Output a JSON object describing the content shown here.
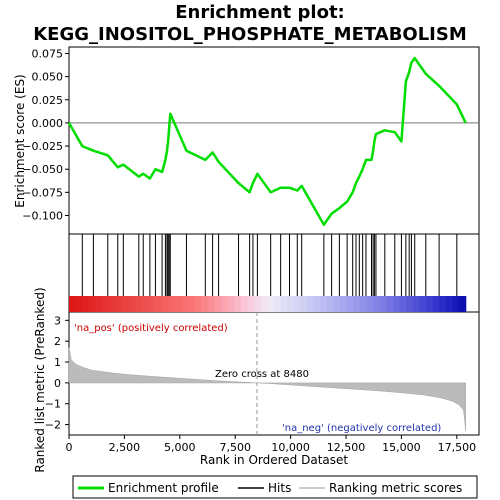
{
  "chart_data": {
    "type": "line",
    "title_line1": "Enrichment plot:",
    "title_line2": "KEGG_INOSITOL_PHOSPHATE_METABOLISM",
    "es_panel": {
      "ylabel": "Enrichment score (ES)",
      "ylim": [
        -0.12,
        0.082
      ],
      "yticks": [
        0.075,
        0.05,
        0.025,
        0.0,
        -0.025,
        -0.05,
        -0.075,
        -0.1
      ],
      "ytick_labels": [
        "0.075",
        "0.050",
        "0.025",
        "0.000",
        "−0.025",
        "−0.050",
        "−0.075",
        "−0.100"
      ],
      "series_name": "Enrichment profile",
      "color": "#00dd00",
      "x": [
        0,
        600,
        1100,
        1750,
        2200,
        2450,
        3150,
        3350,
        3650,
        3900,
        4200,
        4350,
        4420,
        4470,
        4520,
        4570,
        5300,
        6150,
        6480,
        6750,
        7650,
        8150,
        8300,
        8500,
        9100,
        9550,
        9950,
        10300,
        10500,
        11500,
        11850,
        12200,
        12550,
        12800,
        12950,
        13100,
        13250,
        13400,
        13650,
        13720,
        13780,
        13850,
        14250,
        14700,
        15000,
        15200,
        15350,
        15450,
        15600,
        16100,
        16700,
        17500,
        17900
      ],
      "y": [
        0.0,
        -0.025,
        -0.03,
        -0.035,
        -0.048,
        -0.045,
        -0.058,
        -0.055,
        -0.06,
        -0.05,
        -0.053,
        -0.04,
        -0.03,
        -0.02,
        -0.005,
        0.01,
        -0.03,
        -0.04,
        -0.032,
        -0.042,
        -0.065,
        -0.075,
        -0.065,
        -0.055,
        -0.075,
        -0.07,
        -0.07,
        -0.073,
        -0.068,
        -0.11,
        -0.098,
        -0.092,
        -0.085,
        -0.075,
        -0.065,
        -0.058,
        -0.05,
        -0.04,
        -0.04,
        -0.03,
        -0.02,
        -0.012,
        -0.008,
        -0.01,
        -0.02,
        0.045,
        0.055,
        0.065,
        0.07,
        0.053,
        0.04,
        0.02,
        0.0
      ]
    },
    "hits_x": [
      600,
      1100,
      1750,
      2200,
      2450,
      3150,
      3350,
      3650,
      3900,
      4200,
      4350,
      4420,
      4470,
      4520,
      4570,
      5300,
      6150,
      6480,
      6750,
      7650,
      8150,
      8300,
      8500,
      9100,
      9550,
      9950,
      10300,
      10500,
      11500,
      11850,
      12200,
      12550,
      12800,
      12950,
      13100,
      13250,
      13400,
      13650,
      13720,
      13780,
      13850,
      14250,
      14700,
      15000,
      15200,
      15350,
      15450,
      15600,
      16100,
      16700,
      17500
    ],
    "metric_panel": {
      "ylabel": "Ranked list metric (PreRanked)",
      "ylim": [
        -2.5,
        3.4
      ],
      "yticks": [
        3,
        2,
        1,
        0,
        -1,
        -2
      ],
      "ytick_labels": [
        "3",
        "2",
        "1",
        "0",
        "−1",
        "−2"
      ],
      "series_name": "Ranking metric scores",
      "x": [
        0,
        100,
        300,
        600,
        1000,
        2000,
        3000,
        4000,
        5000,
        6000,
        7000,
        8000,
        8480,
        9000,
        10000,
        11000,
        12000,
        13000,
        14000,
        15000,
        16000,
        16800,
        17300,
        17600,
        17800,
        17900
      ],
      "values": [
        1.7,
        1.1,
        0.9,
        0.75,
        0.62,
        0.47,
        0.37,
        0.29,
        0.22,
        0.15,
        0.08,
        0.03,
        0.0,
        -0.03,
        -0.1,
        -0.17,
        -0.24,
        -0.31,
        -0.39,
        -0.47,
        -0.58,
        -0.72,
        -0.88,
        -1.05,
        -1.3,
        -2.3
      ],
      "zero_cross_label": "Zero cross at 8480",
      "zero_cross_x": 8480,
      "pos_label": "'na_pos' (positively correlated)",
      "neg_label": "'na_neg' (negatively correlated)"
    },
    "xlabel": "Rank in Ordered Dataset",
    "xlim": [
      0,
      18500
    ],
    "xticks": [
      0,
      2500,
      5000,
      7500,
      10000,
      12500,
      15000,
      17500
    ],
    "xtick_labels": [
      "0",
      "2,500",
      "5,000",
      "7,500",
      "10,000",
      "12,500",
      "15,000",
      "17,500"
    ],
    "list_length": 17900,
    "legend": {
      "placement": "bottom",
      "items": [
        {
          "label": "Enrichment profile",
          "color": "#00dd00"
        },
        {
          "label": "Hits",
          "color": "#000000"
        },
        {
          "label": "Ranking metric scores",
          "color": "#bbbbbb"
        }
      ]
    }
  }
}
